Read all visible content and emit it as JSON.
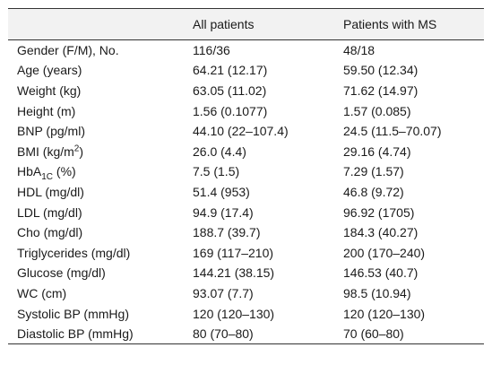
{
  "table": {
    "headers": [
      "",
      "All patients",
      "Patients with MS"
    ],
    "rows": [
      {
        "label": "Gender (F/M), No.",
        "all": "116/36",
        "ms": "48/18"
      },
      {
        "label": "Age (years)",
        "all": "64.21 (12.17)",
        "ms": "59.50 (12.34)"
      },
      {
        "label": "Weight (kg)",
        "all": "63.05 (11.02)",
        "ms": "71.62 (14.97)"
      },
      {
        "label": "Height (m)",
        "all": "1.56 (0.1077)",
        "ms": "1.57 (0.085)"
      },
      {
        "label": "BNP (pg/ml)",
        "all": "44.10 (22–107.4)",
        "ms": "24.5 (11.5–70.07)"
      },
      {
        "label_pre": "BMI (kg/m",
        "label_sup": "2",
        "label_post": ")",
        "all": "26.0 (4.4)",
        "ms": "29.16 (4.74)"
      },
      {
        "label_pre": "HbA",
        "label_sub": "1C",
        "label_post": " (%)",
        "all": "7.5 (1.5)",
        "ms": "7.29 (1.57)"
      },
      {
        "label": "HDL (mg/dl)",
        "all": "51.4 (953)",
        "ms": "46.8 (9.72)"
      },
      {
        "label": "LDL (mg/dl)",
        "all": "94.9 (17.4)",
        "ms": "96.92 (1705)"
      },
      {
        "label": "Cho (mg/dl)",
        "all": "188.7 (39.7)",
        "ms": "184.3 (40.27)"
      },
      {
        "label": "Triglycerides (mg/dl)",
        "all": "169 (117–210)",
        "ms": "200 (170–240)"
      },
      {
        "label": "Glucose (mg/dl)",
        "all": "144.21 (38.15)",
        "ms": "146.53 (40.7)"
      },
      {
        "label": "WC (cm)",
        "all": "93.07 (7.7)",
        "ms": "98.5 (10.94)"
      },
      {
        "label": "Systolic BP (mmHg)",
        "all": "120 (120–130)",
        "ms": "120 (120–130)"
      },
      {
        "label": "Diastolic BP (mmHg)",
        "all": "80 (70–80)",
        "ms": "70 (60–80)"
      }
    ]
  }
}
